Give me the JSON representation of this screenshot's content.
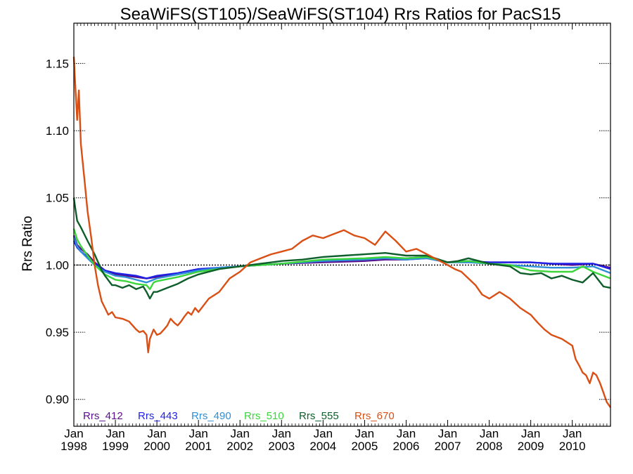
{
  "chart_data": {
    "type": "line",
    "title": "SeaWiFS(ST105)/SeaWiFS(ST104)  Rrs Ratios for PacS15",
    "ylabel": "Rrs Ratio",
    "xlabel": "",
    "xlim": [
      1998.0,
      2010.92
    ],
    "ylim": [
      0.88,
      1.18
    ],
    "yticks": [
      0.9,
      0.95,
      1.0,
      1.05,
      1.1,
      1.15
    ],
    "ytick_labels": [
      "0.90",
      "0.95",
      "1.00",
      "1.05",
      "1.10",
      "1.15"
    ],
    "xticks": [
      1998,
      1999,
      2000,
      2001,
      2002,
      2003,
      2004,
      2005,
      2006,
      2007,
      2008,
      2009,
      2010
    ],
    "xtick_labels_top": [
      "Jan",
      "Jan",
      "Jan",
      "Jan",
      "Jan",
      "Jan",
      "Jan",
      "Jan",
      "Jan",
      "Jan",
      "Jan",
      "Jan",
      "Jan"
    ],
    "xtick_labels_bottom": [
      "1998",
      "1999",
      "2000",
      "2001",
      "2002",
      "2003",
      "2004",
      "2005",
      "2006",
      "2007",
      "2008",
      "2009",
      "2010"
    ],
    "reference_line": 1.0,
    "legend_placement": "bottom-left",
    "series": [
      {
        "name": "Rrs_412",
        "color": "#5b0f8a",
        "x": [
          1998.0,
          1998.08,
          1998.17,
          1998.33,
          1998.5,
          1998.75,
          1999.0,
          1999.25,
          1999.5,
          1999.75,
          2000.0,
          2000.5,
          2001.0,
          2001.5,
          2002.0,
          2003.0,
          2004.0,
          2005.0,
          2005.5,
          2006.0,
          2006.5,
          2007.0,
          2007.5,
          2008.0,
          2009.0,
          2009.5,
          2010.0,
          2010.5,
          2010.92
        ],
        "y": [
          1.022,
          1.015,
          1.012,
          1.008,
          1.002,
          0.996,
          0.993,
          0.992,
          0.991,
          0.99,
          0.991,
          0.993,
          0.996,
          0.998,
          0.999,
          1.001,
          1.002,
          1.003,
          1.004,
          1.004,
          1.005,
          1.002,
          1.002,
          1.002,
          1.002,
          1.001,
          1.0,
          1.001,
          0.998
        ]
      },
      {
        "name": "Rrs_443",
        "color": "#1f1fe6",
        "x": [
          1998.0,
          1998.08,
          1998.17,
          1998.33,
          1998.5,
          1998.75,
          1999.0,
          1999.25,
          1999.5,
          1999.75,
          2000.0,
          2000.5,
          2001.0,
          2001.5,
          2002.0,
          2003.0,
          2004.0,
          2005.0,
          2005.5,
          2006.0,
          2006.5,
          2007.0,
          2007.5,
          2008.0,
          2009.0,
          2009.5,
          2010.0,
          2010.5,
          2010.92
        ],
        "y": [
          1.018,
          1.013,
          1.01,
          1.006,
          1.001,
          0.996,
          0.994,
          0.993,
          0.992,
          0.99,
          0.992,
          0.994,
          0.997,
          0.998,
          0.999,
          1.001,
          1.003,
          1.004,
          1.005,
          1.005,
          1.006,
          1.002,
          1.003,
          1.002,
          1.002,
          1.001,
          1.001,
          1.001,
          0.997
        ]
      },
      {
        "name": "Rrs_490",
        "color": "#2f8fd6",
        "x": [
          1998.0,
          1998.08,
          1998.17,
          1998.33,
          1998.5,
          1998.75,
          1999.0,
          1999.25,
          1999.5,
          1999.75,
          2000.0,
          2000.5,
          2001.0,
          2001.5,
          2002.0,
          2003.0,
          2004.0,
          2005.0,
          2005.5,
          2006.0,
          2006.5,
          2007.0,
          2007.5,
          2008.0,
          2009.0,
          2009.5,
          2010.0,
          2010.5,
          2010.92
        ],
        "y": [
          1.021,
          1.014,
          1.01,
          1.005,
          1.0,
          0.995,
          0.992,
          0.991,
          0.989,
          0.987,
          0.99,
          0.993,
          0.996,
          0.998,
          0.999,
          1.001,
          1.003,
          1.004,
          1.005,
          1.004,
          1.005,
          1.002,
          1.002,
          1.001,
          0.999,
          0.998,
          0.998,
          0.999,
          0.994
        ]
      },
      {
        "name": "Rrs_510",
        "color": "#3bd63b",
        "x": [
          1998.0,
          1998.08,
          1998.17,
          1998.33,
          1998.5,
          1998.75,
          1999.0,
          1999.25,
          1999.5,
          1999.75,
          1999.83,
          1999.92,
          2000.0,
          2000.5,
          2001.0,
          2001.5,
          2002.0,
          2003.0,
          2004.0,
          2005.0,
          2005.5,
          2006.0,
          2006.5,
          2007.0,
          2007.5,
          2008.0,
          2008.5,
          2009.0,
          2009.5,
          2010.0,
          2010.25,
          2010.5,
          2010.92
        ],
        "y": [
          1.027,
          1.019,
          1.014,
          1.007,
          1.0,
          0.993,
          0.989,
          0.988,
          0.986,
          0.985,
          0.982,
          0.987,
          0.988,
          0.991,
          0.995,
          0.997,
          0.999,
          1.001,
          1.004,
          1.005,
          1.006,
          1.005,
          1.006,
          1.002,
          1.003,
          1.001,
          1.0,
          0.996,
          0.995,
          0.995,
          0.999,
          0.995,
          0.99
        ]
      },
      {
        "name": "Rrs_555",
        "color": "#0d5e2a",
        "x": [
          1998.0,
          1998.04,
          1998.08,
          1998.17,
          1998.33,
          1998.5,
          1998.67,
          1998.75,
          1998.92,
          1999.0,
          1999.17,
          1999.33,
          1999.5,
          1999.67,
          1999.75,
          1999.83,
          1999.92,
          2000.0,
          2000.25,
          2000.5,
          2000.75,
          2001.0,
          2001.5,
          2002.0,
          2002.5,
          2003.0,
          2003.5,
          2004.0,
          2004.5,
          2005.0,
          2005.5,
          2006.0,
          2006.5,
          2007.0,
          2007.25,
          2007.5,
          2008.0,
          2008.5,
          2008.75,
          2009.0,
          2009.25,
          2009.5,
          2009.75,
          2010.0,
          2010.25,
          2010.5,
          2010.75,
          2010.92
        ],
        "y": [
          1.05,
          1.041,
          1.033,
          1.028,
          1.018,
          1.008,
          0.996,
          0.992,
          0.985,
          0.985,
          0.983,
          0.985,
          0.982,
          0.984,
          0.98,
          0.975,
          0.98,
          0.98,
          0.983,
          0.986,
          0.99,
          0.993,
          0.997,
          0.999,
          1.001,
          1.003,
          1.004,
          1.006,
          1.007,
          1.008,
          1.009,
          1.007,
          1.007,
          1.002,
          1.003,
          1.005,
          1.001,
          0.999,
          0.994,
          0.993,
          0.994,
          0.99,
          0.992,
          0.989,
          0.987,
          0.994,
          0.984,
          0.983
        ]
      },
      {
        "name": "Rrs_670",
        "color": "#d94f14",
        "x": [
          1998.0,
          1998.04,
          1998.08,
          1998.12,
          1998.17,
          1998.25,
          1998.33,
          1998.42,
          1998.5,
          1998.58,
          1998.67,
          1998.75,
          1998.83,
          1998.92,
          1999.0,
          1999.17,
          1999.33,
          1999.5,
          1999.58,
          1999.67,
          1999.75,
          1999.79,
          1999.83,
          1999.92,
          2000.0,
          2000.08,
          2000.17,
          2000.25,
          2000.33,
          2000.42,
          2000.5,
          2000.58,
          2000.67,
          2000.75,
          2000.83,
          2000.92,
          2001.0,
          2001.25,
          2001.5,
          2001.75,
          2002.0,
          2002.25,
          2002.5,
          2002.75,
          2003.0,
          2003.25,
          2003.5,
          2003.75,
          2004.0,
          2004.25,
          2004.5,
          2004.75,
          2005.0,
          2005.25,
          2005.5,
          2005.75,
          2006.0,
          2006.25,
          2006.5,
          2006.75,
          2007.0,
          2007.17,
          2007.33,
          2007.5,
          2007.67,
          2007.83,
          2008.0,
          2008.25,
          2008.5,
          2008.75,
          2009.0,
          2009.17,
          2009.33,
          2009.5,
          2009.75,
          2010.0,
          2010.08,
          2010.17,
          2010.25,
          2010.33,
          2010.42,
          2010.5,
          2010.58,
          2010.67,
          2010.75,
          2010.83,
          2010.92
        ],
        "y": [
          1.155,
          1.13,
          1.108,
          1.13,
          1.09,
          1.065,
          1.04,
          1.02,
          1.0,
          0.985,
          0.973,
          0.968,
          0.963,
          0.965,
          0.961,
          0.96,
          0.958,
          0.952,
          0.95,
          0.951,
          0.948,
          0.935,
          0.945,
          0.952,
          0.948,
          0.949,
          0.952,
          0.955,
          0.96,
          0.957,
          0.955,
          0.958,
          0.962,
          0.965,
          0.963,
          0.968,
          0.965,
          0.975,
          0.98,
          0.99,
          0.995,
          1.002,
          1.005,
          1.008,
          1.01,
          1.012,
          1.018,
          1.022,
          1.02,
          1.023,
          1.026,
          1.022,
          1.02,
          1.015,
          1.025,
          1.018,
          1.01,
          1.012,
          1.008,
          1.004,
          1.0,
          0.997,
          0.995,
          0.99,
          0.985,
          0.978,
          0.975,
          0.98,
          0.975,
          0.968,
          0.963,
          0.957,
          0.952,
          0.948,
          0.945,
          0.94,
          0.93,
          0.925,
          0.92,
          0.918,
          0.912,
          0.92,
          0.918,
          0.912,
          0.905,
          0.898,
          0.894
        ]
      }
    ]
  }
}
